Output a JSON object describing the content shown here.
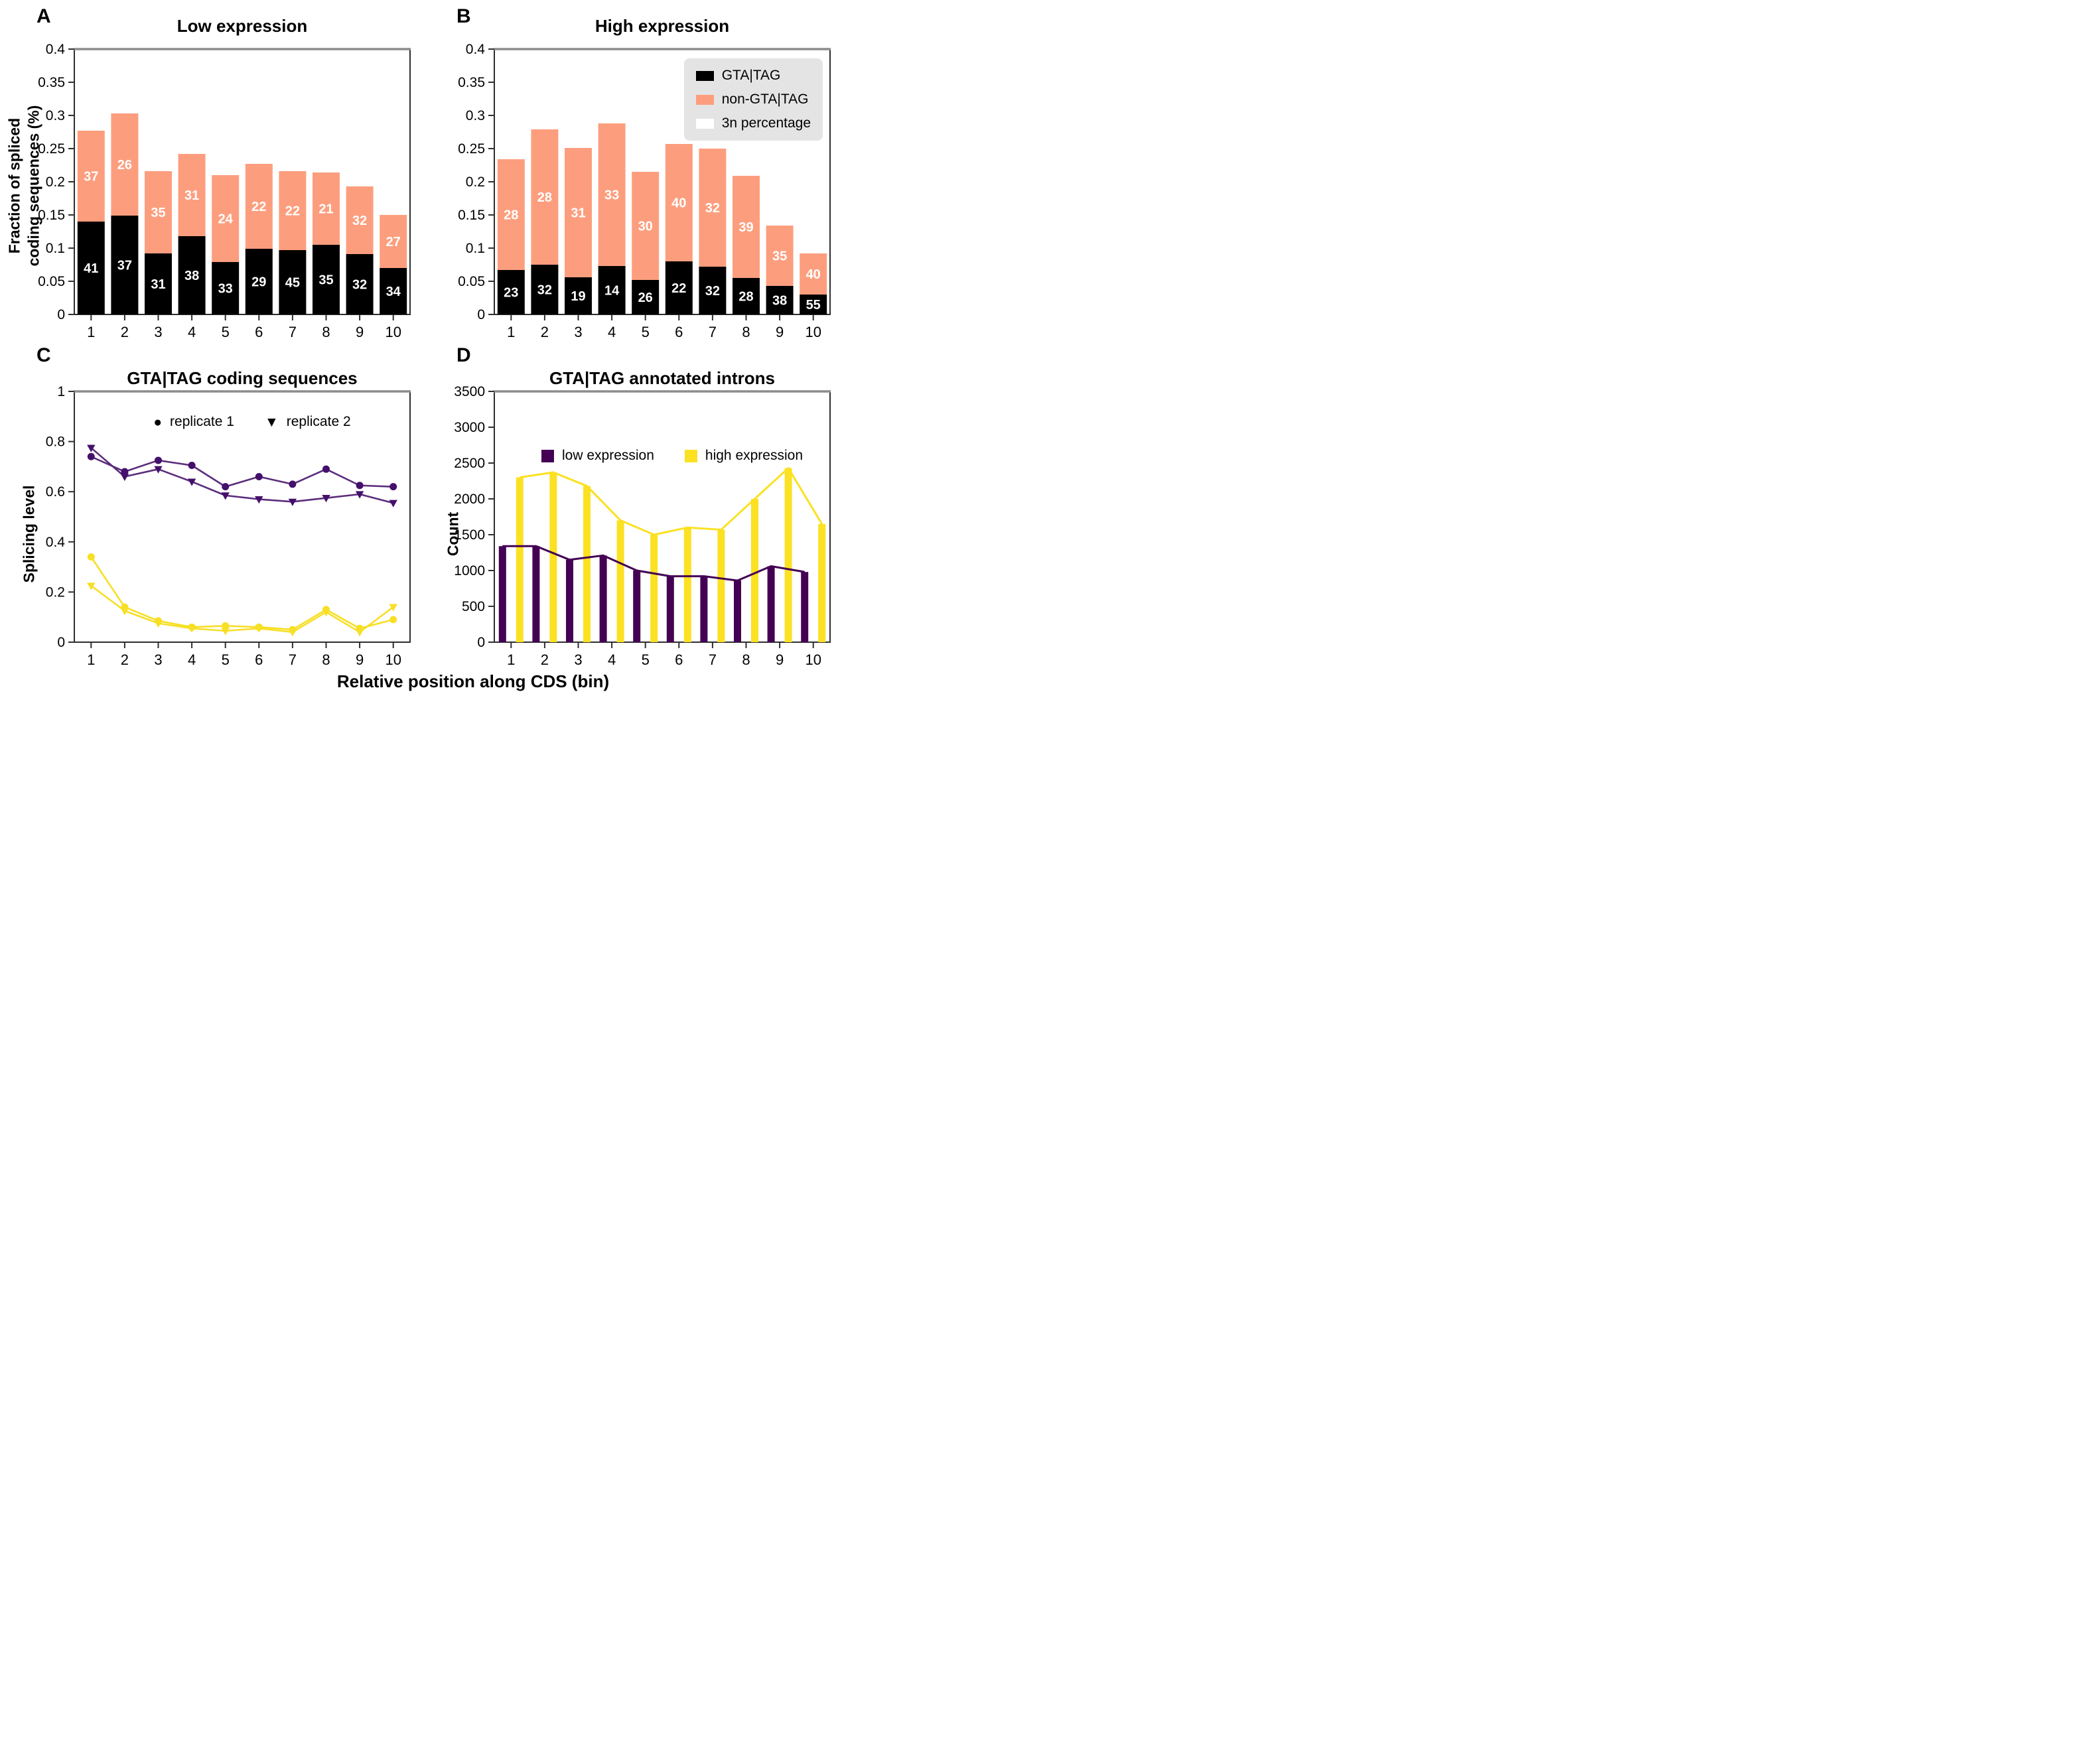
{
  "figure": {
    "xlabel": "Relative position along CDS (bin)"
  },
  "colors": {
    "black": "#000000",
    "salmon": "#FC9E7E",
    "white_series": "#FFFFFF",
    "purple_line": "#5B2D7D",
    "purple_marker": "#44106B",
    "yellow_line": "#F7DF25",
    "purple_bar": "#440154",
    "yellow_bar": "#FBE122",
    "axis": "#2e2e2e",
    "top_spine": "#8c8c8c",
    "legend_bg": "#e4e4e4"
  },
  "panels": {
    "a": {
      "letter": "A",
      "title": "Low expression",
      "ylabel": "Fraction of spliced\ncoding sequences (%)"
    },
    "b": {
      "letter": "B",
      "title": "High expression",
      "legend": [
        "GTA|TAG",
        "non-GTA|TAG",
        "3n percentage"
      ]
    },
    "c": {
      "letter": "C",
      "title": "GTA|TAG coding sequences",
      "ylabel": "Splicing level",
      "legend": [
        "replicate 1",
        "replicate 2"
      ],
      "legend_markers": [
        "●",
        "▼"
      ]
    },
    "d": {
      "letter": "D",
      "title": "GTA|TAG annotated introns",
      "ylabel": "Count",
      "legend": [
        "low expression",
        "high expression"
      ]
    }
  },
  "chart_data": [
    {
      "id": "a",
      "type": "bar",
      "stacked": true,
      "title": "Low expression",
      "ylabel": "Fraction of spliced coding sequences (%)",
      "categories": [
        "1",
        "2",
        "3",
        "4",
        "5",
        "6",
        "7",
        "8",
        "9",
        "10"
      ],
      "ylim": [
        0,
        0.4
      ],
      "yticks": [
        "0",
        "0.05",
        "0.1",
        "0.15",
        "0.2",
        "0.25",
        "0.3",
        "0.35",
        "0.4"
      ],
      "grid": false,
      "series": [
        {
          "name": "GTA|TAG",
          "color": "#000000",
          "values": [
            0.14,
            0.149,
            0.092,
            0.118,
            0.079,
            0.099,
            0.097,
            0.105,
            0.091,
            0.07
          ],
          "labels": [
            "41",
            "37",
            "31",
            "38",
            "33",
            "29",
            "45",
            "35",
            "32",
            "34"
          ],
          "label_color": "#ffffff"
        },
        {
          "name": "non-GTA|TAG",
          "color": "#FC9E7E",
          "values": [
            0.137,
            0.154,
            0.124,
            0.124,
            0.131,
            0.128,
            0.119,
            0.109,
            0.102,
            0.08
          ],
          "labels": [
            "37",
            "26",
            "35",
            "31",
            "24",
            "22",
            "22",
            "21",
            "32",
            "27"
          ],
          "label_color": "#ffffff"
        },
        {
          "name": "3n percentage",
          "color": "#FFFFFF",
          "values": null
        }
      ]
    },
    {
      "id": "b",
      "type": "bar",
      "stacked": true,
      "title": "High expression",
      "categories": [
        "1",
        "2",
        "3",
        "4",
        "5",
        "6",
        "7",
        "8",
        "9",
        "10"
      ],
      "ylim": [
        0,
        0.4
      ],
      "yticks": [
        "0",
        "0.05",
        "0.1",
        "0.15",
        "0.2",
        "0.25",
        "0.3",
        "0.35",
        "0.4"
      ],
      "grid": false,
      "legend_position": "upper right",
      "series": [
        {
          "name": "GTA|TAG",
          "color": "#000000",
          "values": [
            0.067,
            0.075,
            0.056,
            0.073,
            0.052,
            0.08,
            0.072,
            0.055,
            0.043,
            0.03
          ],
          "labels": [
            "23",
            "32",
            "19",
            "14",
            "26",
            "22",
            "32",
            "28",
            "38",
            "55"
          ],
          "label_color": "#ffffff"
        },
        {
          "name": "non-GTA|TAG",
          "color": "#FC9E7E",
          "values": [
            0.167,
            0.204,
            0.195,
            0.215,
            0.163,
            0.177,
            0.178,
            0.154,
            0.091,
            0.062
          ],
          "labels": [
            "28",
            "28",
            "31",
            "33",
            "30",
            "40",
            "32",
            "39",
            "35",
            "40"
          ],
          "label_color": "#ffffff"
        },
        {
          "name": "3n percentage",
          "color": "#FFFFFF",
          "values": null
        }
      ]
    },
    {
      "id": "c",
      "type": "line",
      "title": "GTA|TAG coding sequences",
      "ylabel": "Splicing level",
      "categories": [
        "1",
        "2",
        "3",
        "4",
        "5",
        "6",
        "7",
        "8",
        "9",
        "10"
      ],
      "ylim": [
        0,
        1
      ],
      "yticks": [
        "0",
        "0.2",
        "0.4",
        "0.6",
        "0.8",
        "1"
      ],
      "grid": false,
      "legend_position": "upper center",
      "series": [
        {
          "name": "low expression replicate 1",
          "marker": "circle",
          "color": "#5B2D7D",
          "marker_color": "#44106B",
          "values": [
            0.74,
            0.68,
            0.725,
            0.705,
            0.62,
            0.66,
            0.63,
            0.69,
            0.625,
            0.62
          ]
        },
        {
          "name": "low expression replicate 2",
          "marker": "triangle-down",
          "color": "#5B2D7D",
          "marker_color": "#44106B",
          "values": [
            0.775,
            0.66,
            0.69,
            0.64,
            0.585,
            0.57,
            0.56,
            0.575,
            0.59,
            0.555
          ]
        },
        {
          "name": "high expression replicate 1",
          "marker": "circle",
          "color": "#F7DF25",
          "marker_color": "#F7DF25",
          "values": [
            0.34,
            0.14,
            0.085,
            0.06,
            0.065,
            0.06,
            0.05,
            0.13,
            0.055,
            0.09
          ]
        },
        {
          "name": "high expression replicate 2",
          "marker": "triangle-down",
          "color": "#F7DF25",
          "marker_color": "#F7DF25",
          "values": [
            0.225,
            0.125,
            0.075,
            0.055,
            0.045,
            0.055,
            0.04,
            0.12,
            0.04,
            0.14
          ]
        }
      ]
    },
    {
      "id": "d",
      "type": "bar",
      "stacked": false,
      "bar_style": "thin bars with line connecting tops",
      "title": "GTA|TAG annotated introns",
      "ylabel": "Count",
      "categories": [
        "1",
        "2",
        "3",
        "4",
        "5",
        "6",
        "7",
        "8",
        "9",
        "10"
      ],
      "ylim": [
        0,
        3500
      ],
      "yticks": [
        "0",
        "500",
        "1000",
        "1500",
        "2000",
        "2500",
        "3000",
        "3500"
      ],
      "grid": false,
      "legend_position": "upper center",
      "series": [
        {
          "name": "low expression",
          "color": "#440154",
          "values": [
            1340,
            1340,
            1150,
            1210,
            1000,
            920,
            920,
            860,
            1060,
            980
          ]
        },
        {
          "name": "high expression",
          "color": "#FBE122",
          "values": [
            2300,
            2370,
            2180,
            1700,
            1500,
            1600,
            1570,
            2000,
            2430,
            1650
          ]
        }
      ]
    }
  ]
}
